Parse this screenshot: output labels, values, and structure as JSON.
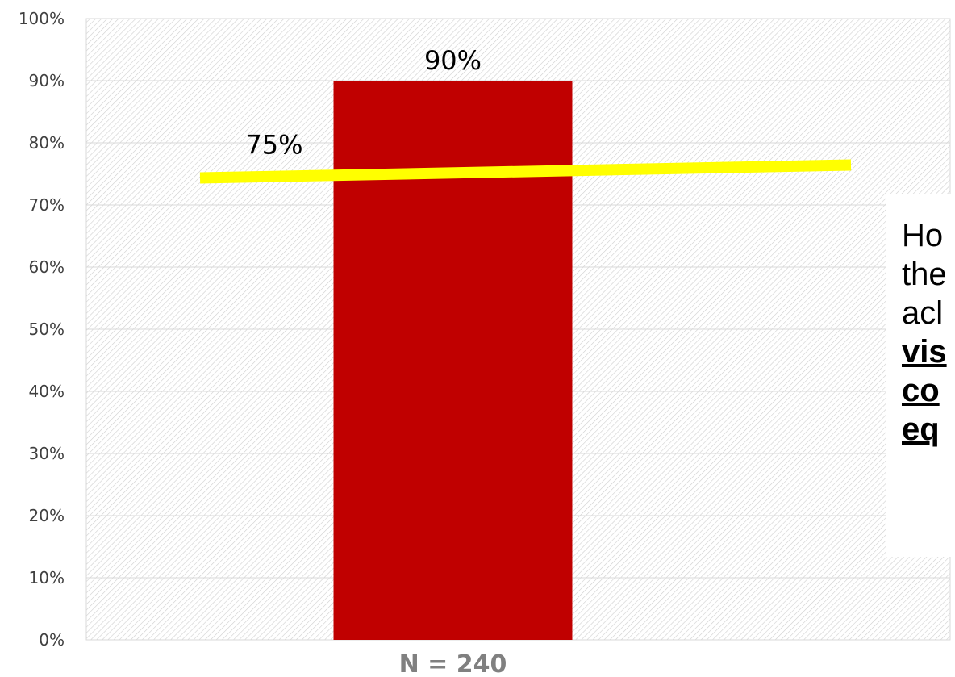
{
  "chart_data": {
    "type": "bar",
    "categories": [
      "N = 240"
    ],
    "values": [
      90
    ],
    "value_labels": [
      "90%"
    ],
    "ylim": [
      0,
      100
    ],
    "y_ticks": [
      "0%",
      "10%",
      "20%",
      "30%",
      "40%",
      "50%",
      "60%",
      "70%",
      "80%",
      "90%",
      "100%"
    ],
    "bar_color": "#C00000",
    "grid": true,
    "target_line": {
      "value": 75,
      "label": "75%",
      "color": "#FFFF00"
    }
  },
  "callout": {
    "lines": [
      "Ho",
      "the",
      "acl"
    ],
    "emphasis_lines": [
      "vis",
      "co",
      "eq"
    ]
  }
}
